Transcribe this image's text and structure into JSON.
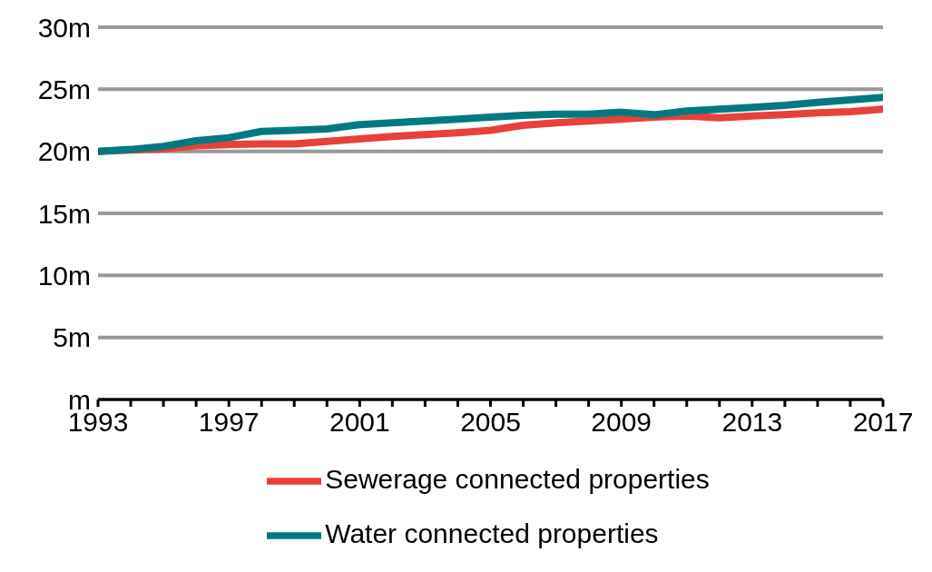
{
  "chart_data": {
    "type": "line",
    "x": [
      1993,
      1994,
      1995,
      1996,
      1997,
      1998,
      1999,
      2000,
      2001,
      2002,
      2003,
      2004,
      2005,
      2006,
      2007,
      2008,
      2009,
      2010,
      2011,
      2012,
      2013,
      2014,
      2015,
      2016,
      2017
    ],
    "series": [
      {
        "name": "Sewerage connected properties",
        "color": "#e8403a",
        "values": [
          20.0,
          20.1,
          20.2,
          20.45,
          20.55,
          20.6,
          20.6,
          20.8,
          21.0,
          21.2,
          21.35,
          21.5,
          21.7,
          22.1,
          22.3,
          22.45,
          22.6,
          22.75,
          22.85,
          22.7,
          22.85,
          22.95,
          23.1,
          23.2,
          23.4
        ]
      },
      {
        "name": "Water connected properties",
        "color": "#007a80",
        "values": [
          20.0,
          20.15,
          20.4,
          20.85,
          21.1,
          21.6,
          21.7,
          21.8,
          22.15,
          22.3,
          22.45,
          22.6,
          22.75,
          22.9,
          23.0,
          23.0,
          23.15,
          22.95,
          23.25,
          23.4,
          23.55,
          23.7,
          23.95,
          24.15,
          24.35
        ]
      }
    ],
    "xlim": [
      1993,
      2017
    ],
    "xticks": [
      1993,
      {
        "value": 1994,
        "label": null
      },
      {
        "value": 1995,
        "label": null
      },
      {
        "value": 1996,
        "label": null
      },
      1997,
      {
        "value": 1998,
        "label": null
      },
      {
        "value": 1999,
        "label": null
      },
      {
        "value": 2000,
        "label": null
      },
      2001,
      {
        "value": 2002,
        "label": null
      },
      {
        "value": 2003,
        "label": null
      },
      {
        "value": 2004,
        "label": null
      },
      2005,
      {
        "value": 2006,
        "label": null
      },
      {
        "value": 2007,
        "label": null
      },
      {
        "value": 2008,
        "label": null
      },
      2009,
      {
        "value": 2010,
        "label": null
      },
      {
        "value": 2011,
        "label": null
      },
      {
        "value": 2012,
        "label": null
      },
      2013,
      {
        "value": 2014,
        "label": null
      },
      {
        "value": 2015,
        "label": null
      },
      {
        "value": 2016,
        "label": null
      },
      2017
    ],
    "ylim": [
      0,
      30
    ],
    "yticks": [
      {
        "value": 0,
        "label": "m"
      },
      {
        "value": 5,
        "label": "5m"
      },
      {
        "value": 10,
        "label": "10m"
      },
      {
        "value": 15,
        "label": "15m"
      },
      {
        "value": 20,
        "label": "20m"
      },
      {
        "value": 25,
        "label": "25m"
      },
      {
        "value": 30,
        "label": "30m"
      }
    ],
    "grid": "y",
    "legend": "bottom",
    "marker": "none",
    "line_style": "solid"
  }
}
